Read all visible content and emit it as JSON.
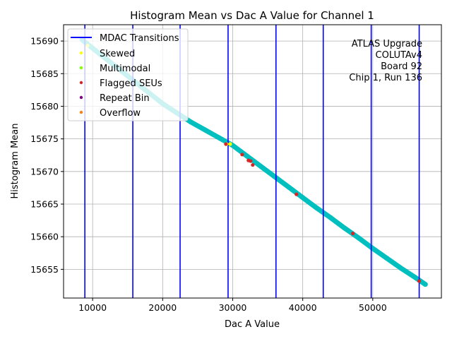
{
  "chart_data": {
    "type": "scatter",
    "title": "Histogram Mean vs Dac A Value for Channel 1",
    "xlabel": "Dac A Value",
    "ylabel": "Histogram Mean",
    "xlim": [
      5850,
      59800
    ],
    "ylim": [
      15650.6,
      15692.5
    ],
    "xticks": [
      10000,
      20000,
      30000,
      40000,
      50000
    ],
    "yticks": [
      15655,
      15660,
      15665,
      15670,
      15675,
      15680,
      15685,
      15690
    ],
    "grid": true,
    "legend_position": "top-left",
    "annotation": [
      "ATLAS Upgrade",
      "COLUTAv4",
      " Board 92",
      "Chip 1, Run 136"
    ],
    "main_series": {
      "color": "#00bfbf",
      "x": [
        8500,
        10000,
        12000,
        14000,
        16000,
        18000,
        20000,
        22000,
        24000,
        26000,
        28000,
        30000,
        32000,
        34000,
        36000,
        38000,
        40000,
        42000,
        44000,
        46000,
        48000,
        50000,
        52000,
        54000,
        56000,
        57500
      ],
      "y": [
        15690.2,
        15688.9,
        15687.2,
        15685.5,
        15683.8,
        15682.1,
        15680.4,
        15679.0,
        15677.6,
        15676.4,
        15675.2,
        15674.0,
        15672.4,
        15670.8,
        15669.2,
        15667.6,
        15666.0,
        15664.4,
        15662.9,
        15661.3,
        15659.8,
        15658.2,
        15656.7,
        15655.2,
        15653.8,
        15652.7
      ]
    },
    "transitions": {
      "name": "MDAC Transitions",
      "color": "#0000ff",
      "x": [
        8890,
        15740,
        22490,
        29340,
        36180,
        42930,
        49780,
        56630
      ]
    },
    "series": [
      {
        "name": "Skewed",
        "color": "#ffff00",
        "x": [
          9300,
          29130,
          29640
        ],
        "y": [
          15689.3,
          15674.2,
          15674.2
        ]
      },
      {
        "name": "Multimodal",
        "color": "#7fff00",
        "x": [],
        "y": []
      },
      {
        "name": "Flagged SEUs",
        "color": "#d62728",
        "x": [
          29030,
          31350,
          32250,
          32560,
          32860,
          39100,
          47160,
          56620
        ],
        "y": [
          15674.2,
          15672.6,
          15671.7,
          15671.6,
          15671.0,
          15666.5,
          15660.5,
          15653.2
        ]
      },
      {
        "name": "Repeat Bin",
        "color": "#800080",
        "x": [],
        "y": []
      },
      {
        "name": "Overflow",
        "color": "#ff7f0e",
        "x": [],
        "y": []
      }
    ]
  }
}
